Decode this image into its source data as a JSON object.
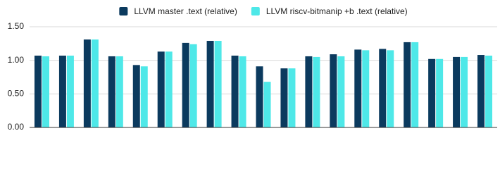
{
  "chart_data": {
    "type": "bar",
    "categories": [
      null,
      null,
      null,
      null,
      null,
      null,
      null,
      null,
      null,
      null,
      null,
      null,
      null,
      null,
      null,
      null,
      null,
      null,
      null
    ],
    "series": [
      {
        "name": "LLVM master .text (relative)",
        "color": "#0b3a5e",
        "values": [
          1.07,
          1.07,
          1.31,
          1.06,
          0.93,
          1.13,
          1.26,
          1.29,
          1.07,
          0.91,
          0.88,
          1.06,
          1.09,
          1.16,
          1.17,
          1.27,
          1.02,
          1.05,
          1.08
        ]
      },
      {
        "name": "LLVM riscv-bitmanip +b .text (relative)",
        "color": "#4ee8e8",
        "values": [
          1.06,
          1.07,
          1.31,
          1.06,
          0.91,
          1.13,
          1.24,
          1.29,
          1.06,
          0.68,
          0.88,
          1.05,
          1.06,
          1.15,
          1.15,
          1.27,
          1.02,
          1.05,
          1.07
        ]
      }
    ],
    "ylim": [
      0,
      1.5
    ],
    "yticks": [
      {
        "value": 0,
        "label": "0.00"
      },
      {
        "value": 0.5,
        "label": "0.50"
      },
      {
        "value": 1,
        "label": "1.00"
      },
      {
        "value": 1.5,
        "label": "1.50"
      }
    ],
    "grid": true,
    "legend": "top"
  }
}
